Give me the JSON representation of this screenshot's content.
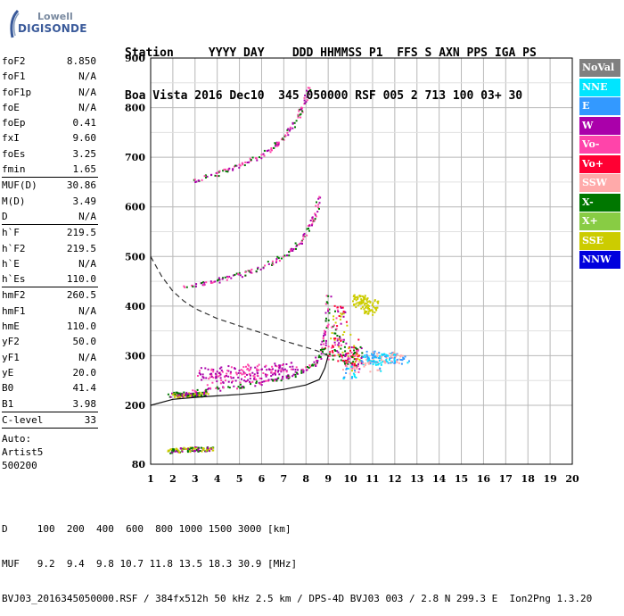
{
  "logo": {
    "top": "Lowell",
    "bottom": "DIGISONDE"
  },
  "header": {
    "line1": "Station     YYYY DAY    DDD HHMMSS P1  FFS S AXN PPS IGA PS",
    "line2": "Boa Vista 2016 Dec10  345 050000 RSF 005 2 713 100 03+ 30"
  },
  "params": [
    {
      "name": "foF2",
      "value": "8.850"
    },
    {
      "name": "foF1",
      "value": "N/A"
    },
    {
      "name": "foF1p",
      "value": "N/A"
    },
    {
      "name": "foE",
      "value": "N/A"
    },
    {
      "name": "foEp",
      "value": "0.41"
    },
    {
      "name": "fxI",
      "value": "9.60"
    },
    {
      "name": "foEs",
      "value": "3.25"
    },
    {
      "name": "fmin",
      "value": "1.65"
    },
    {
      "sep": true
    },
    {
      "name": "MUF(D)",
      "value": "30.86"
    },
    {
      "name": "M(D)",
      "value": "3.49"
    },
    {
      "name": "D",
      "value": "N/A"
    },
    {
      "sep": true
    },
    {
      "name": "h`F",
      "value": "219.5"
    },
    {
      "name": "h`F2",
      "value": "219.5"
    },
    {
      "name": "h`E",
      "value": "N/A"
    },
    {
      "name": "h`Es",
      "value": "110.0"
    },
    {
      "sep": true
    },
    {
      "name": "hmF2",
      "value": "260.5"
    },
    {
      "name": "hmF1",
      "value": "N/A"
    },
    {
      "name": "hmE",
      "value": "110.0"
    },
    {
      "name": "yF2",
      "value": "50.0"
    },
    {
      "name": "yF1",
      "value": "N/A"
    },
    {
      "name": "yE",
      "value": "20.0"
    },
    {
      "name": "B0",
      "value": "41.4"
    },
    {
      "name": "B1",
      "value": "3.98"
    },
    {
      "sep": true
    },
    {
      "name": "C-level",
      "value": "33"
    },
    {
      "sep": true
    }
  ],
  "auto": {
    "line1": "Auto:",
    "line2": "Artist5",
    "line3": "500200"
  },
  "legend": [
    {
      "label": "NoVal",
      "color": "#808080"
    },
    {
      "label": "NNE",
      "color": "#00e5ff"
    },
    {
      "label": "E",
      "color": "#3399ff"
    },
    {
      "label": "W",
      "color": "#aa00aa"
    },
    {
      "label": "Vo-",
      "color": "#ff44aa"
    },
    {
      "label": "Vo+",
      "color": "#ff0033"
    },
    {
      "label": "SSW",
      "color": "#ffaaaa"
    },
    {
      "label": "X-",
      "color": "#007700"
    },
    {
      "label": "X+",
      "color": "#88cc44"
    },
    {
      "label": "SSE",
      "color": "#cccc00"
    },
    {
      "label": "NNW",
      "color": "#0000dd"
    }
  ],
  "footer": {
    "line1": "D     100  200  400  600  800 1000 1500 3000 [km]",
    "line2": "MUF   9.2  9.4  9.8 10.7 11.8 13.5 18.3 30.9 [MHz]",
    "line3": "BVJ03_2016345050000.RSF / 384fx512h 50 kHz 2.5 km / DPS-4D BVJ03 003 / 2.8 N 299.3 E  Ion2Png 1.3.20"
  },
  "chart_data": {
    "type": "scatter",
    "title": "",
    "xlabel": "",
    "ylabel": "",
    "xlim": [
      1,
      20
    ],
    "ylim": [
      80,
      900
    ],
    "x_ticks": [
      1,
      2,
      3,
      4,
      5,
      6,
      7,
      8,
      9,
      10,
      11,
      12,
      13,
      14,
      15,
      16,
      17,
      18,
      19,
      20
    ],
    "y_ticks": [
      80,
      200,
      300,
      400,
      500,
      600,
      700,
      800,
      900
    ],
    "grid": true,
    "traces": [
      {
        "name": "F2 trace",
        "color": "#007700",
        "points": [
          [
            1.8,
            222
          ],
          [
            2.5,
            226
          ],
          [
            3.5,
            231
          ],
          [
            4.5,
            237
          ],
          [
            5.5,
            243
          ],
          [
            6.5,
            251
          ],
          [
            7.2,
            259
          ],
          [
            7.8,
            269
          ],
          [
            8.3,
            282
          ],
          [
            8.6,
            300
          ],
          [
            8.8,
            330
          ],
          [
            8.9,
            370
          ],
          [
            9.0,
            420
          ]
        ]
      },
      {
        "name": "F2 2-hop",
        "color": "#ff44aa",
        "points": [
          [
            2.5,
            440
          ],
          [
            3.5,
            448
          ],
          [
            4.5,
            458
          ],
          [
            5.5,
            471
          ],
          [
            6.5,
            490
          ],
          [
            7.3,
            512
          ],
          [
            7.9,
            540
          ],
          [
            8.3,
            575
          ],
          [
            8.6,
            620
          ]
        ]
      },
      {
        "name": "F2 3-hop",
        "color": "#ff44aa",
        "points": [
          [
            3.0,
            655
          ],
          [
            4.0,
            668
          ],
          [
            5.0,
            685
          ],
          [
            6.0,
            705
          ],
          [
            6.7,
            728
          ],
          [
            7.3,
            760
          ],
          [
            7.8,
            800
          ],
          [
            8.1,
            840
          ]
        ]
      },
      {
        "name": "Es",
        "color": "#cccc00",
        "points": [
          [
            1.8,
            108
          ],
          [
            2.2,
            110
          ],
          [
            2.6,
            111
          ],
          [
            3.0,
            112
          ],
          [
            3.4,
            112
          ],
          [
            3.8,
            113
          ]
        ]
      },
      {
        "name": "Es 2-hop",
        "color": "#cccc00",
        "points": [
          [
            2.0,
            222
          ],
          [
            2.5,
            221
          ],
          [
            3.0,
            223
          ],
          [
            3.5,
            224
          ]
        ]
      },
      {
        "name": "Vo scatter",
        "color": "#ff0033",
        "points": [
          [
            9.0,
            300
          ],
          [
            9.2,
            320
          ],
          [
            9.4,
            360
          ],
          [
            9.6,
            300
          ],
          [
            9.8,
            290
          ],
          [
            10.0,
            310
          ],
          [
            10.2,
            280
          ],
          [
            10.4,
            300
          ],
          [
            9.3,
            400
          ],
          [
            9.5,
            380
          ]
        ]
      },
      {
        "name": "E scatter",
        "color": "#3399ff",
        "points": [
          [
            10.5,
            290
          ],
          [
            10.8,
            295
          ],
          [
            11.0,
            300
          ],
          [
            11.3,
            295
          ],
          [
            11.6,
            298
          ],
          [
            12.0,
            296
          ],
          [
            12.4,
            294
          ],
          [
            10.2,
            270
          ],
          [
            9.8,
            265
          ]
        ]
      },
      {
        "name": "W scatter",
        "color": "#aa00aa",
        "points": [
          [
            3.2,
            265
          ],
          [
            4.0,
            268
          ],
          [
            5.0,
            270
          ],
          [
            6.0,
            272
          ],
          [
            6.8,
            275
          ],
          [
            7.4,
            278
          ],
          [
            3.5,
            255
          ],
          [
            4.5,
            258
          ],
          [
            5.5,
            260
          ],
          [
            6.5,
            262
          ]
        ]
      },
      {
        "name": "SSE cluster",
        "color": "#cccc00",
        "points": [
          [
            10.2,
            415
          ],
          [
            10.5,
            410
          ],
          [
            10.8,
            395
          ],
          [
            11.0,
            402
          ]
        ]
      }
    ],
    "profile_curves": [
      {
        "name": "true-height profile",
        "style": "solid",
        "points": [
          [
            1.0,
            200
          ],
          [
            2.0,
            212
          ],
          [
            3.0,
            216
          ],
          [
            4.0,
            219
          ],
          [
            5.0,
            222
          ],
          [
            6.0,
            226
          ],
          [
            7.0,
            232
          ],
          [
            8.0,
            241
          ],
          [
            8.6,
            252
          ],
          [
            8.85,
            275
          ],
          [
            9.0,
            300
          ]
        ]
      },
      {
        "name": "MUF curve",
        "style": "dashed",
        "points": [
          [
            1.0,
            500
          ],
          [
            1.5,
            460
          ],
          [
            2.0,
            430
          ],
          [
            2.5,
            410
          ],
          [
            3.0,
            395
          ],
          [
            4.0,
            375
          ],
          [
            5.0,
            360
          ],
          [
            6.0,
            346
          ],
          [
            7.0,
            330
          ],
          [
            8.0,
            317
          ],
          [
            8.5,
            310
          ],
          [
            9.0,
            300
          ]
        ]
      }
    ]
  }
}
